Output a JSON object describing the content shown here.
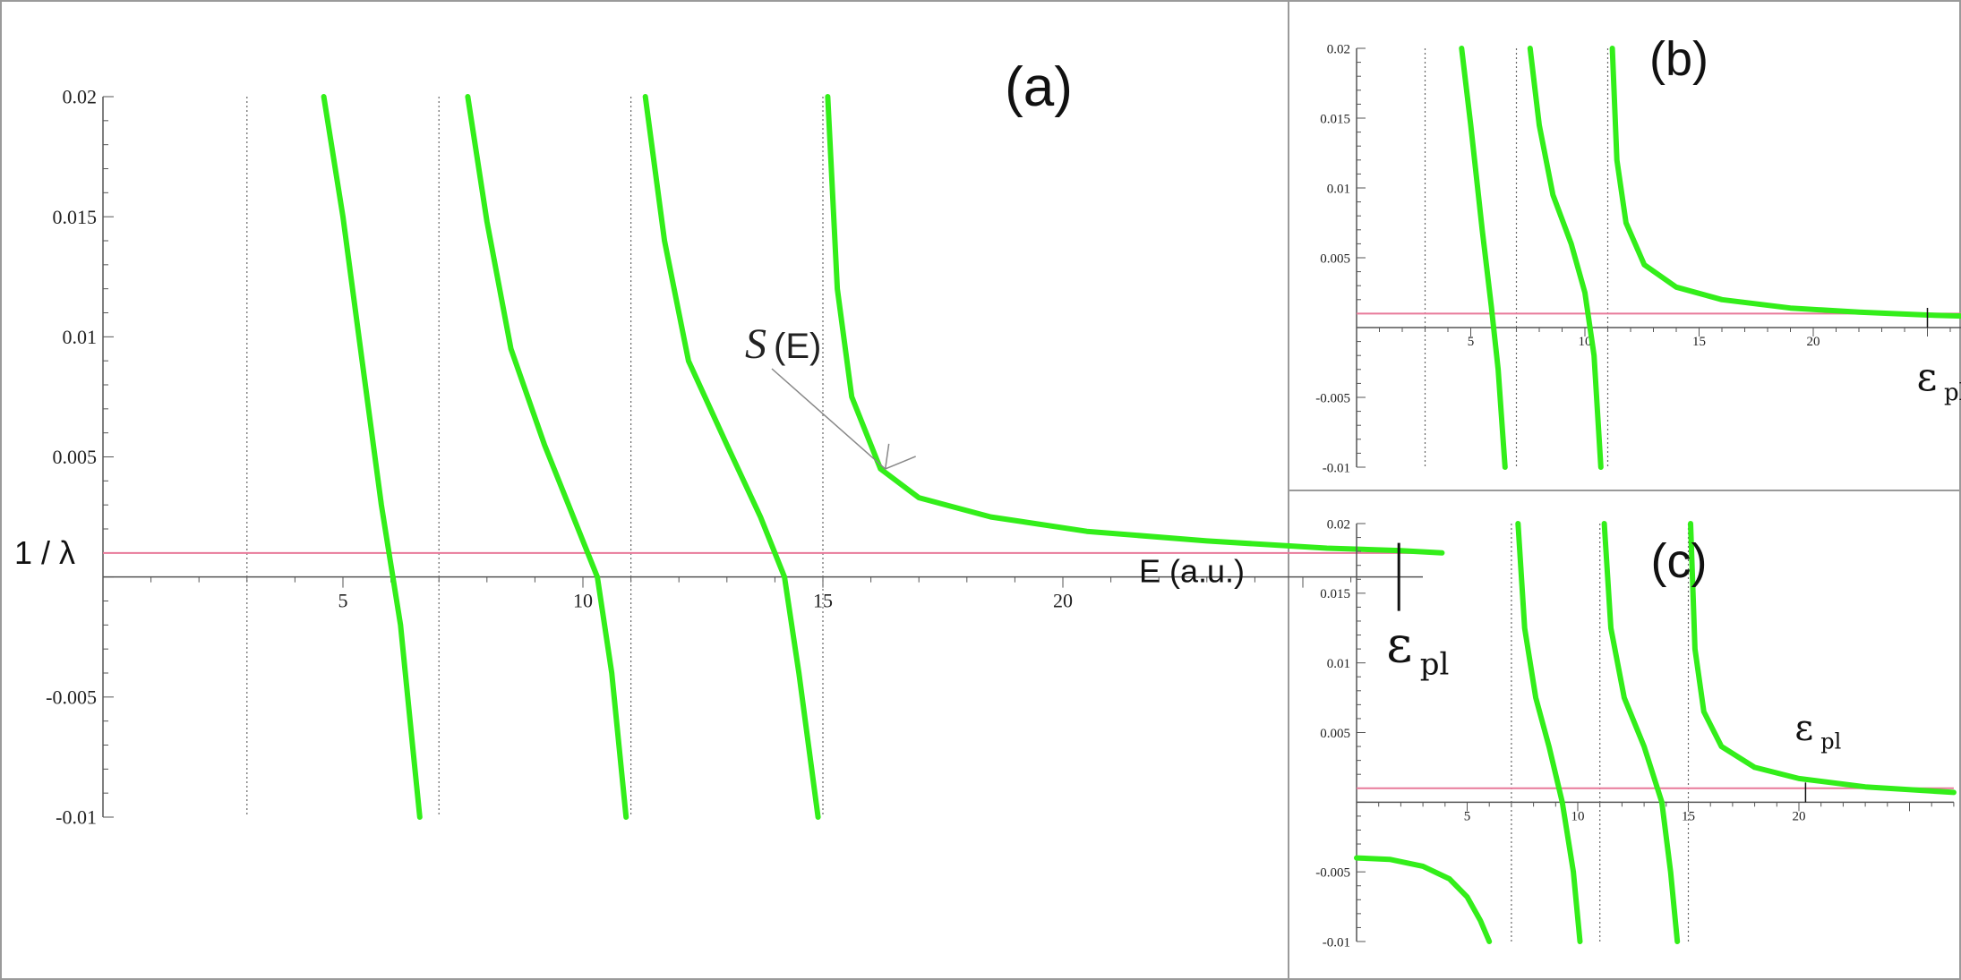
{
  "chart_data": [
    {
      "panel": "(a)",
      "type": "line",
      "x_ticks": [
        "5",
        "10",
        "15",
        "20"
      ],
      "y_ticks": [
        "0.02",
        "0.015",
        "0.01",
        "0.005",
        "-0.005",
        "-0.01"
      ],
      "xlabel": "E (a.u.)",
      "hline_label": "1 / λ",
      "hline_y": 0.001,
      "epsilon_label": "ε",
      "epsilon_sub": "pl",
      "epsilon_x": 27,
      "annotation": {
        "text_italic": "S",
        "text_rest": "(E)",
        "points_to": {
          "x": 16.3,
          "y": 0.0045
        }
      },
      "xlim": [
        0,
        27.5
      ],
      "ylim": [
        -0.01,
        0.02
      ],
      "asymptotes": [
        3,
        7,
        11,
        15
      ],
      "series": [
        {
          "branch": 1,
          "x": [
            4.6,
            5.0,
            5.4,
            5.8,
            6.0,
            6.2,
            6.4,
            6.6
          ],
          "y": [
            0.02,
            0.015,
            0.009,
            0.003,
            0.0005,
            -0.002,
            -0.006,
            -0.01
          ]
        },
        {
          "branch": 2,
          "x": [
            7.6,
            8.0,
            8.5,
            9.2,
            9.8,
            10.3,
            10.6,
            10.9
          ],
          "y": [
            0.02,
            0.0148,
            0.0095,
            0.0055,
            0.0025,
            0.0,
            -0.004,
            -0.01
          ]
        },
        {
          "branch": 3,
          "x": [
            11.3,
            11.7,
            12.2,
            13.0,
            13.7,
            14.2,
            14.5,
            14.9
          ],
          "y": [
            0.02,
            0.014,
            0.009,
            0.0055,
            0.0025,
            0.0,
            -0.004,
            -0.01
          ]
        },
        {
          "branch": 4,
          "x": [
            15.1,
            15.3,
            15.6,
            16.2,
            17.0,
            18.5,
            20.5,
            23.0,
            25.5,
            27.0,
            28.0
          ],
          "y": [
            0.02,
            0.012,
            0.0075,
            0.0045,
            0.0033,
            0.0025,
            0.0019,
            0.0015,
            0.0012,
            0.0011,
            0.001
          ]
        }
      ]
    },
    {
      "panel": "(b)",
      "type": "line",
      "x_ticks": [
        "5",
        "10",
        "15",
        "20"
      ],
      "y_ticks": [
        "0.02",
        "0.015",
        "0.01",
        "0.005",
        "-0.005",
        "-0.01"
      ],
      "hline_y": 0.001,
      "epsilon_label": "ε",
      "epsilon_sub": "pl",
      "epsilon_x": 25,
      "xlim": [
        0,
        27
      ],
      "ylim": [
        -0.01,
        0.02
      ],
      "asymptotes": [
        3,
        7,
        11
      ],
      "series": [
        {
          "branch": 1,
          "x": [
            4.6,
            5.0,
            5.5,
            5.9,
            6.2,
            6.5
          ],
          "y": [
            0.02,
            0.0145,
            0.007,
            0.0015,
            -0.003,
            -0.01
          ]
        },
        {
          "branch": 2,
          "x": [
            7.6,
            8.0,
            8.6,
            9.4,
            10.0,
            10.4,
            10.7
          ],
          "y": [
            0.02,
            0.0145,
            0.0095,
            0.006,
            0.0025,
            -0.002,
            -0.01
          ]
        },
        {
          "branch": 3,
          "x": [
            11.2,
            11.4,
            11.8,
            12.6,
            14.0,
            16.0,
            19.0,
            22.0,
            25.0,
            27.0
          ],
          "y": [
            0.02,
            0.012,
            0.0075,
            0.0045,
            0.0029,
            0.002,
            0.0014,
            0.0011,
            0.0009,
            0.0008
          ]
        }
      ]
    },
    {
      "panel": "(c)",
      "type": "line",
      "x_ticks": [
        "5",
        "10",
        "15",
        "20"
      ],
      "y_ticks": [
        "0.02",
        "0.015",
        "0.01",
        "0.005",
        "-0.005",
        "-0.01"
      ],
      "hline_y": 0.001,
      "epsilon_label": "ε",
      "epsilon_sub": "pl",
      "epsilon_x": 20.3,
      "xlim": [
        0,
        27
      ],
      "ylim": [
        -0.01,
        0.02
      ],
      "asymptotes": [
        7,
        11,
        15
      ],
      "series": [
        {
          "branch": 0,
          "x": [
            0.0,
            1.5,
            3.0,
            4.2,
            5.0,
            5.6,
            6.0
          ],
          "y": [
            -0.004,
            -0.0041,
            -0.0046,
            -0.0055,
            -0.0068,
            -0.0085,
            -0.01
          ]
        },
        {
          "branch": 1,
          "x": [
            7.3,
            7.6,
            8.1,
            8.7,
            9.3,
            9.8,
            10.1
          ],
          "y": [
            0.02,
            0.0125,
            0.0075,
            0.004,
            0.0,
            -0.005,
            -0.01
          ]
        },
        {
          "branch": 2,
          "x": [
            11.2,
            11.5,
            12.1,
            13.0,
            13.8,
            14.2,
            14.5
          ],
          "y": [
            0.02,
            0.0125,
            0.0075,
            0.004,
            0.0,
            -0.005,
            -0.01
          ]
        },
        {
          "branch": 3,
          "x": [
            15.1,
            15.3,
            15.7,
            16.5,
            18.0,
            20.0,
            23.0,
            27.0
          ],
          "y": [
            0.02,
            0.011,
            0.0065,
            0.004,
            0.0025,
            0.0017,
            0.0011,
            0.0007
          ]
        }
      ]
    }
  ]
}
